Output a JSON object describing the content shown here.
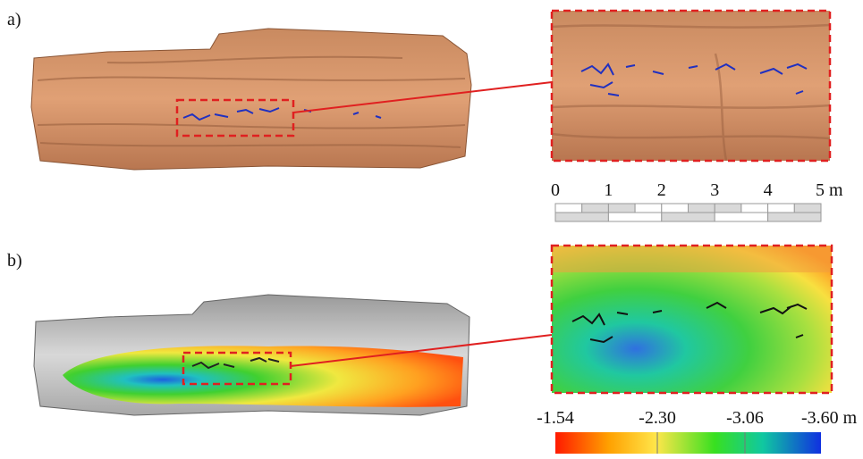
{
  "panels": [
    {
      "label": "a)"
    },
    {
      "label": "b)"
    }
  ],
  "scale_bar": {
    "ticks": [
      "0",
      "1",
      "2",
      "3",
      "4",
      "5 m"
    ]
  },
  "color_bar": {
    "ticks": [
      "-1.54",
      "-2.30",
      "-3.06",
      "-3.60 m"
    ]
  }
}
